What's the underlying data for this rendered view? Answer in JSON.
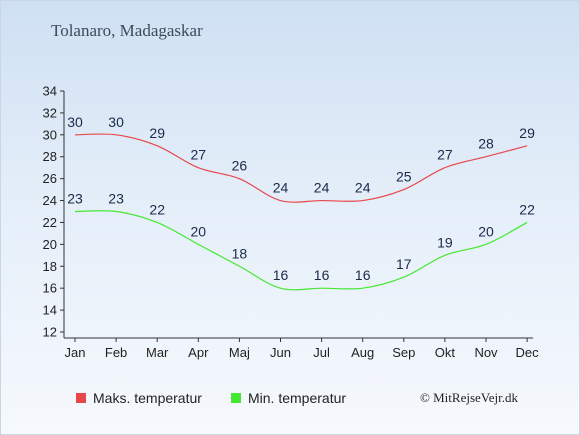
{
  "title": "Tolanaro, Madagaskar",
  "copyright": "© MitRejseVejr.dk",
  "chart_data": {
    "type": "line",
    "categories": [
      "Jan",
      "Feb",
      "Mar",
      "Apr",
      "Maj",
      "Jun",
      "Jul",
      "Aug",
      "Sep",
      "Okt",
      "Nov",
      "Dec"
    ],
    "series": [
      {
        "name": "Maks. temperatur",
        "color": "#e8474a",
        "values": [
          30,
          30,
          29,
          27,
          26,
          24,
          24,
          24,
          25,
          27,
          28,
          29
        ]
      },
      {
        "name": "Min. temperatur",
        "color": "#44e832",
        "values": [
          23,
          23,
          22,
          20,
          18,
          16,
          16,
          16,
          17,
          19,
          20,
          22
        ]
      }
    ],
    "yticks": [
      "12",
      "14",
      "16",
      "18",
      "20",
      "22",
      "24",
      "26",
      "28",
      "30",
      "32",
      "34"
    ],
    "ylim": [
      12,
      34
    ],
    "legend_position": "bottom-left"
  }
}
